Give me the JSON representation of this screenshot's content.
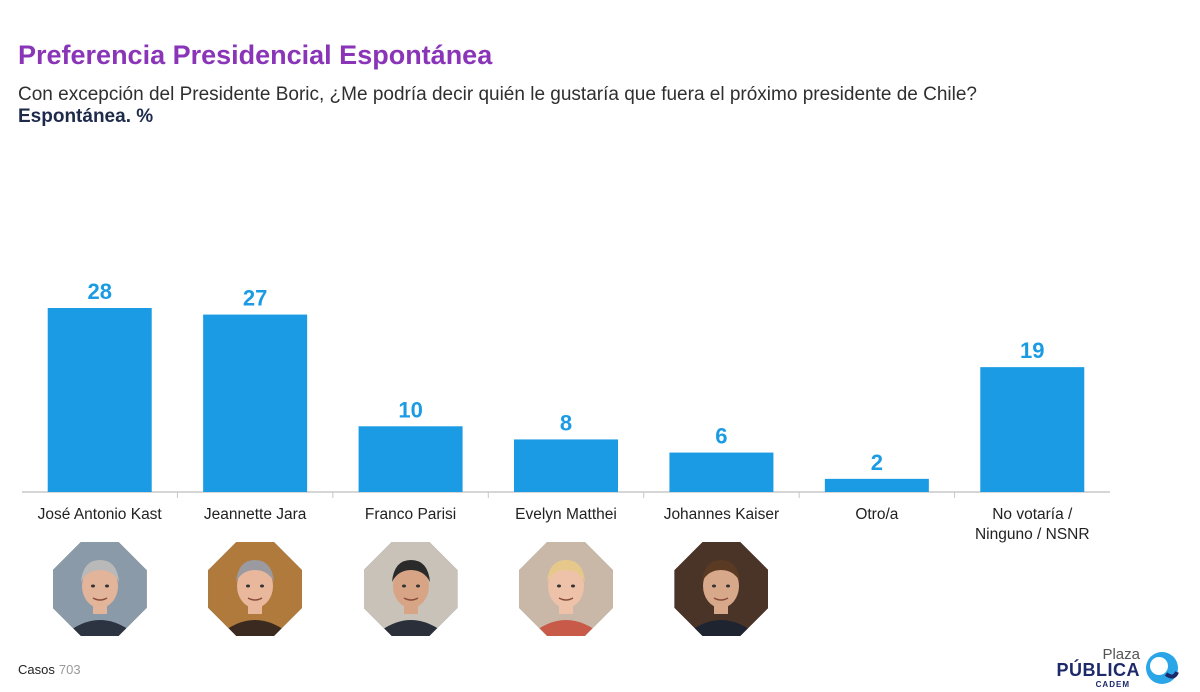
{
  "header": {
    "title": "Preferencia Presidencial Espontánea",
    "question": "Con excepción del Presidente Boric, ¿Me podría decir quién le gustaría que fuera el próximo presidente de Chile?",
    "measure": "Espontánea. %"
  },
  "chart_data": {
    "type": "bar",
    "categories": [
      "José Antonio Kast",
      "Jeannette Jara",
      "Franco Parisi",
      "Evelyn Matthei",
      "Johannes Kaiser",
      "Otro/a",
      "No votaría / Ninguno / NSNR"
    ],
    "category_lines": [
      [
        "José Antonio Kast"
      ],
      [
        "Jeannette Jara"
      ],
      [
        "Franco Parisi"
      ],
      [
        "Evelyn Matthei"
      ],
      [
        "Johannes Kaiser"
      ],
      [
        "Otro/a"
      ],
      [
        "No votaría /",
        "Ninguno / NSNR"
      ]
    ],
    "values": [
      28,
      27,
      10,
      8,
      6,
      2,
      19
    ],
    "title": "Preferencia Presidencial Espontánea",
    "xlabel": "",
    "ylabel": "",
    "ylim": [
      0,
      28
    ],
    "grid": false,
    "bar_color": "#1a9be3",
    "label_color": "#1a9be3"
  },
  "photos": [
    {
      "name": "José Antonio Kast",
      "icon": "portrait-kast-icon",
      "bg": "#8a9aa8",
      "skin": "#e2b49a",
      "hair": "#b9b9b9",
      "suit": "#2b3440"
    },
    {
      "name": "Jeannette Jara",
      "icon": "portrait-jara-icon",
      "bg": "#b07a3c",
      "skin": "#e8b79c",
      "hair": "#9a9aa0",
      "suit": "#3a2a20"
    },
    {
      "name": "Franco Parisi",
      "icon": "portrait-parisi-icon",
      "bg": "#c9c2b8",
      "skin": "#d7a585",
      "hair": "#2a2a2a",
      "suit": "#2a2f3a"
    },
    {
      "name": "Evelyn Matthei",
      "icon": "portrait-matthei-icon",
      "bg": "#c9b8a8",
      "skin": "#eec2a8",
      "hair": "#e6c98a",
      "suit": "#c85a4a"
    },
    {
      "name": "Johannes Kaiser",
      "icon": "portrait-kaiser-icon",
      "bg": "#4a3428",
      "skin": "#d8a88a",
      "hair": "#5a3a22",
      "suit": "#1e2530"
    }
  ],
  "footer": {
    "cases_label": "Casos",
    "cases_value": "703"
  },
  "logo": {
    "line1": "Plaza",
    "line2": "PÚBLICA",
    "line3": "CADEM",
    "accent": "#1d2a6a",
    "mark_color": "#2aa6e8"
  }
}
